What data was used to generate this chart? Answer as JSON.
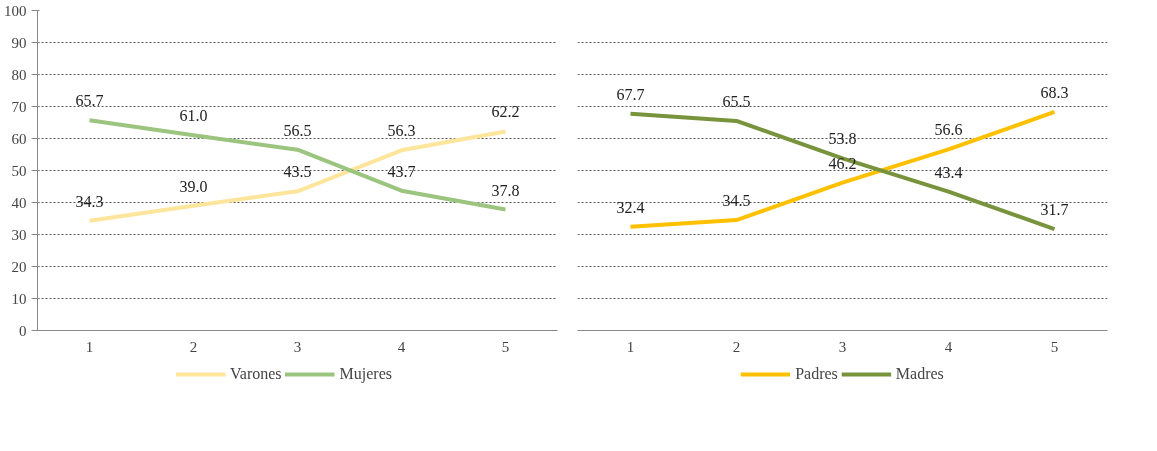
{
  "chart_data": [
    {
      "type": "line",
      "categories": [
        "1",
        "2",
        "3",
        "4",
        "5"
      ],
      "ylim": [
        0,
        100
      ],
      "yticks": [
        0,
        10,
        20,
        30,
        40,
        50,
        60,
        70,
        80,
        90,
        100
      ],
      "grid": "y",
      "legend": "bottom",
      "series": [
        {
          "name": "Varones",
          "color": "#fde59b",
          "values": [
            34.3,
            39.0,
            43.5,
            56.3,
            62.2
          ],
          "value_labels": [
            "34.3",
            "39.0",
            "43.5",
            "56.3",
            "62.2"
          ]
        },
        {
          "name": "Mujeres",
          "color": "#9bc47f",
          "values": [
            65.7,
            61.0,
            56.5,
            43.7,
            37.8
          ],
          "value_labels": [
            "65.7",
            "61.0",
            "56.5",
            "43.7",
            "37.8"
          ]
        }
      ]
    },
    {
      "type": "line",
      "categories": [
        "1",
        "2",
        "3",
        "4",
        "5"
      ],
      "ylim": [
        0,
        100
      ],
      "yticks": [
        0,
        10,
        20,
        30,
        40,
        50,
        60,
        70,
        80,
        90,
        100
      ],
      "grid": "y",
      "legend": "bottom",
      "tick_labels": "x",
      "series": [
        {
          "name": "Padres",
          "color": "#ffc000",
          "values": [
            32.4,
            34.5,
            46.2,
            56.6,
            68.3
          ],
          "value_labels": [
            "32.4",
            "34.5",
            "46.2",
            "56.6",
            "68.3"
          ]
        },
        {
          "name": "Madres",
          "color": "#77933c",
          "values": [
            67.7,
            65.5,
            53.8,
            43.4,
            31.7
          ],
          "value_labels": [
            "67.7",
            "65.5",
            "53.8",
            "43.4",
            "31.7"
          ]
        }
      ]
    }
  ]
}
